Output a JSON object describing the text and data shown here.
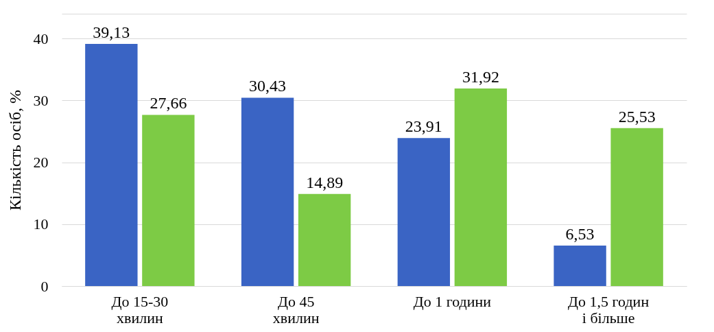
{
  "chart_data": {
    "type": "bar",
    "ylabel": "Кількість осіб, %",
    "categories": [
      "До 15-30\nхвилин",
      "До 45\nхвилин",
      "До 1 години",
      "До 1,5 годин\nі більше"
    ],
    "series": [
      {
        "color": "#3a64c4",
        "values": [
          39.13,
          30.43,
          23.91,
          6.53
        ],
        "value_labels": [
          "39,13",
          "30,43",
          "23,91",
          "6,53"
        ]
      },
      {
        "color": "#7dcb45",
        "values": [
          27.66,
          14.89,
          31.92,
          25.53
        ],
        "value_labels": [
          "27,66",
          "14,89",
          "31,92",
          "25,53"
        ]
      }
    ],
    "ylim": [
      0,
      44
    ],
    "yticks": [
      0,
      10,
      20,
      30,
      40,
      {
        "value": 44,
        "label": null
      }
    ],
    "grid": "y"
  }
}
